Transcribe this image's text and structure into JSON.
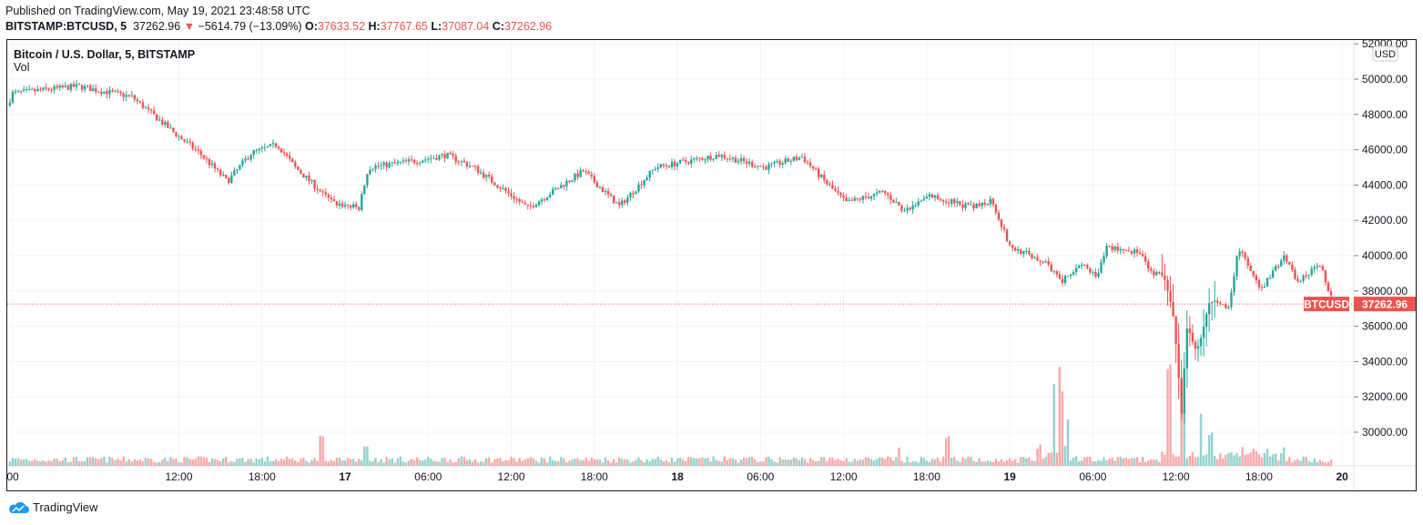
{
  "header": {
    "published": "Published on TradingView.com, May 19, 2021 23:48:58 UTC",
    "symbol": "BITSTAMP:BTCUSD, 5",
    "last": "37262.96",
    "change": "−5614.79 (−13.09%)",
    "o_label": "O:",
    "o": "37633.52",
    "h_label": "H:",
    "h": "37767.65",
    "l_label": "L:",
    "l": "37087.04",
    "c_label": "C:",
    "c": "37262.96"
  },
  "legend": {
    "title": "Bitcoin / U.S. Dollar, 5, BITSTAMP",
    "vol": "Vol"
  },
  "footer": {
    "brand": "TradingView"
  },
  "colors": {
    "up": "#26a69a",
    "down": "#ef5350",
    "grid": "#f0f3fa"
  },
  "chart_data": {
    "type": "candlestick",
    "currency": "USD",
    "symbol_tag": "BTCUSD",
    "last_price": 37262.96,
    "ylim": [
      28300,
      52000
    ],
    "y_ticks": [
      52000,
      50000,
      48000,
      46000,
      44000,
      42000,
      40000,
      38000,
      36000,
      34000,
      32000,
      30000
    ],
    "y_tick_labels": [
      "52000.00",
      "50000.00",
      "48000.00",
      "46000.00",
      "44000.00",
      "42000.00",
      "40000.00",
      "38000.00",
      "36000.00",
      "34000.00",
      "32000.00",
      "30000.00"
    ],
    "last_label": "37262.96",
    "x_range_hours": [
      -0.5,
      96.5
    ],
    "x_ticks": [
      {
        "h": 0,
        "label": "00"
      },
      {
        "h": 12,
        "label": "12:00"
      },
      {
        "h": 18,
        "label": "18:00"
      },
      {
        "h": 24,
        "label": "17"
      },
      {
        "h": 30,
        "label": "06:00"
      },
      {
        "h": 36,
        "label": "12:00"
      },
      {
        "h": 42,
        "label": "18:00"
      },
      {
        "h": 48,
        "label": "18"
      },
      {
        "h": 54,
        "label": "06:00"
      },
      {
        "h": 60,
        "label": "12:00"
      },
      {
        "h": 66,
        "label": "18:00"
      },
      {
        "h": 72,
        "label": "19"
      },
      {
        "h": 78,
        "label": "06:00"
      },
      {
        "h": 84,
        "label": "12:00"
      },
      {
        "h": 90,
        "label": "18:00"
      },
      {
        "h": 96,
        "label": "20"
      }
    ],
    "price_path": [
      [
        -0.4,
        48500
      ],
      [
        0,
        49200
      ],
      [
        4.7,
        49600
      ],
      [
        8.6,
        49000
      ],
      [
        11.6,
        47000
      ],
      [
        13.5,
        45800
      ],
      [
        15.5,
        44200
      ],
      [
        17.2,
        45800
      ],
      [
        19.1,
        46300
      ],
      [
        20.4,
        45000
      ],
      [
        23.1,
        43000
      ],
      [
        25,
        42700
      ],
      [
        25.7,
        45000
      ],
      [
        29.3,
        45400
      ],
      [
        31.3,
        45700
      ],
      [
        33.3,
        45000
      ],
      [
        37.2,
        42700
      ],
      [
        41.2,
        44800
      ],
      [
        43.8,
        42800
      ],
      [
        46.4,
        45000
      ],
      [
        51,
        45700
      ],
      [
        54.3,
        45000
      ],
      [
        57,
        45600
      ],
      [
        58.9,
        44000
      ],
      [
        60.2,
        43000
      ],
      [
        62.9,
        43600
      ],
      [
        64.5,
        42500
      ],
      [
        66.2,
        43400
      ],
      [
        69.4,
        42700
      ],
      [
        70.7,
        43200
      ],
      [
        72,
        40500
      ],
      [
        74.7,
        39600
      ],
      [
        75.7,
        38500
      ],
      [
        77.3,
        39500
      ],
      [
        78.3,
        38700
      ],
      [
        79,
        40500
      ],
      [
        81.3,
        40200
      ],
      [
        82.2,
        39000
      ],
      [
        83.2,
        38800
      ],
      [
        83.9,
        36000
      ],
      [
        84.4,
        31000
      ],
      [
        84.8,
        36000
      ],
      [
        85.5,
        34500
      ],
      [
        86.5,
        37500
      ],
      [
        87.8,
        37000
      ],
      [
        88.5,
        40500
      ],
      [
        90.1,
        38000
      ],
      [
        91.8,
        40000
      ],
      [
        92.8,
        38500
      ],
      [
        94.4,
        39500
      ],
      [
        95.4,
        37263
      ]
    ],
    "volume_spikes": [
      [
        22.3,
        0.3
      ],
      [
        25.5,
        0.22
      ],
      [
        75.2,
        0.9
      ],
      [
        75.7,
        0.85
      ],
      [
        76.2,
        0.55
      ],
      [
        83.5,
        0.95
      ],
      [
        84.5,
        0.6
      ],
      [
        85.8,
        0.45
      ],
      [
        86.5,
        0.35
      ],
      [
        67.5,
        0.3
      ],
      [
        64,
        0.2
      ]
    ]
  }
}
